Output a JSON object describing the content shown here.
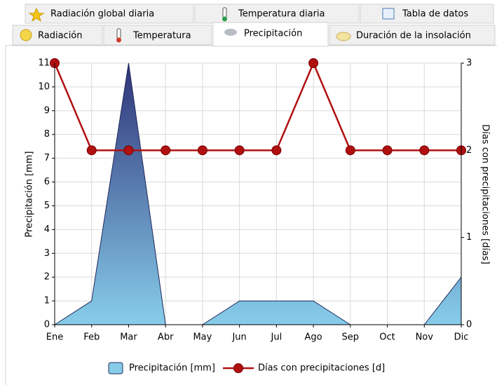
{
  "tabs": [
    [
      "Radiación global diaria",
      "Temperatura diaria",
      "Tabla de datos"
    ],
    [
      "Radiación",
      "Temperatura",
      "Precipitación",
      "Duración de la insolación"
    ]
  ],
  "chart_data": {
    "type": "area-line",
    "categories": [
      "Ene",
      "Feb",
      "Mar",
      "Abr",
      "May",
      "Jun",
      "Jul",
      "Ago",
      "Sep",
      "Oct",
      "Nov",
      "Dic"
    ],
    "ylabel": "Precipitación [mm]",
    "y2label": "Días con precipitaciones [días]",
    "ylim": [
      0,
      11
    ],
    "yticks": [
      0,
      1,
      2,
      3,
      4,
      5,
      6,
      7,
      8,
      9,
      10,
      11
    ],
    "y2lim": [
      0,
      3
    ],
    "y2ticks": [
      0,
      1,
      2,
      3
    ],
    "grid": true,
    "legend": "bottom",
    "series": [
      {
        "name": "Precipitación [mm]",
        "color": "#87cdea",
        "values": [
          0,
          1,
          11,
          0,
          0,
          1,
          1,
          1,
          0,
          0,
          0,
          2
        ]
      },
      {
        "name": "Días con precipitaciones [d]",
        "color": "#b01010",
        "axis": "y2",
        "values": [
          3,
          2,
          2,
          2,
          2,
          2,
          2,
          3,
          2,
          2,
          2,
          2
        ]
      }
    ]
  }
}
